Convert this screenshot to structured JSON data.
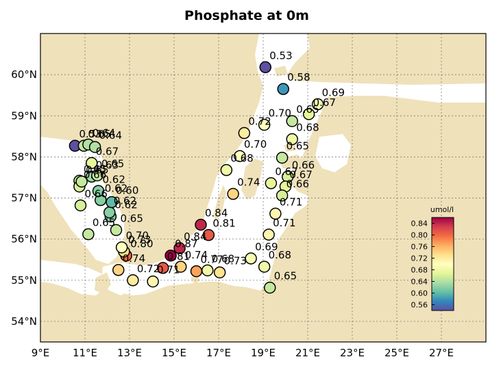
{
  "title": "Phosphate at 0m",
  "colors": {
    "land": "#efe1ba",
    "sea": "#ffffff",
    "grid": "#666666",
    "marker_edge": "#000000"
  },
  "colormap": "Spectral_r",
  "chart_data": {
    "type": "scatter",
    "xlim": [
      9,
      29
    ],
    "ylim": [
      53.5,
      61
    ],
    "xticks": [
      "9°E",
      "11°E",
      "13°E",
      "15°E",
      "17°E",
      "19°E",
      "21°E",
      "23°E",
      "25°E",
      "27°E"
    ],
    "xtick_values": [
      9,
      11,
      13,
      15,
      17,
      19,
      21,
      23,
      25,
      27
    ],
    "yticks": [
      "54°N",
      "55°N",
      "56°N",
      "57°N",
      "58°N",
      "59°N",
      "60°N"
    ],
    "ytick_values": [
      54,
      55,
      56,
      57,
      58,
      59,
      60
    ],
    "grid": true,
    "colorbar": {
      "label": "umol/l",
      "min": 0.54,
      "max": 0.86,
      "ticks": [
        "0.84",
        "0.80",
        "0.76",
        "0.72",
        "0.68",
        "0.64",
        "0.60",
        "0.56"
      ],
      "tick_values": [
        0.84,
        0.8,
        0.76,
        0.72,
        0.68,
        0.64,
        0.6,
        0.56
      ]
    },
    "points": [
      {
        "lon": 19.1,
        "lat": 60.18,
        "value": 0.53,
        "label": "0.53"
      },
      {
        "lon": 19.9,
        "lat": 59.65,
        "value": 0.58,
        "label": "0.58"
      },
      {
        "lon": 21.45,
        "lat": 59.28,
        "value": 0.69,
        "label": "0.69"
      },
      {
        "lon": 21.05,
        "lat": 59.04,
        "value": 0.67,
        "label": "0.67"
      },
      {
        "lon": 20.3,
        "lat": 58.87,
        "value": 0.65,
        "label": "0.65"
      },
      {
        "lon": 19.05,
        "lat": 58.78,
        "value": 0.7,
        "label": "0.70"
      },
      {
        "lon": 18.15,
        "lat": 58.58,
        "value": 0.72,
        "label": "0.72"
      },
      {
        "lon": 20.3,
        "lat": 58.43,
        "value": 0.68,
        "label": "0.68"
      },
      {
        "lon": 17.95,
        "lat": 58.02,
        "value": 0.7,
        "label": "0.70"
      },
      {
        "lon": 19.85,
        "lat": 57.98,
        "value": 0.65,
        "label": "0.65"
      },
      {
        "lon": 17.35,
        "lat": 57.68,
        "value": 0.68,
        "label": "0.68"
      },
      {
        "lon": 20.1,
        "lat": 57.52,
        "value": 0.66,
        "label": "0.66"
      },
      {
        "lon": 19.35,
        "lat": 57.36,
        "value": 0.67,
        "label": "0.67"
      },
      {
        "lon": 20.0,
        "lat": 57.28,
        "value": 0.67,
        "label": "0.67"
      },
      {
        "lon": 19.85,
        "lat": 57.06,
        "value": 0.66,
        "label": "0.66"
      },
      {
        "lon": 17.65,
        "lat": 57.1,
        "value": 0.74,
        "label": "0.74"
      },
      {
        "lon": 19.55,
        "lat": 56.62,
        "value": 0.71,
        "label": "0.71"
      },
      {
        "lon": 19.25,
        "lat": 56.11,
        "value": 0.71,
        "label": "0.71"
      },
      {
        "lon": 16.2,
        "lat": 56.35,
        "value": 0.84,
        "label": "0.84"
      },
      {
        "lon": 16.55,
        "lat": 56.1,
        "value": 0.81,
        "label": "0.81"
      },
      {
        "lon": 15.25,
        "lat": 55.78,
        "value": 0.84,
        "label": "0.84"
      },
      {
        "lon": 14.85,
        "lat": 55.6,
        "value": 0.87,
        "label": "0.87"
      },
      {
        "lon": 14.5,
        "lat": 55.3,
        "value": 0.81,
        "label": "0.81"
      },
      {
        "lon": 15.3,
        "lat": 55.33,
        "value": 0.74,
        "label": "0.74"
      },
      {
        "lon": 16.0,
        "lat": 55.22,
        "value": 0.77,
        "label": "0.77"
      },
      {
        "lon": 16.5,
        "lat": 55.24,
        "value": 0.68,
        "label": "0.68"
      },
      {
        "lon": 17.05,
        "lat": 55.19,
        "value": 0.73,
        "label": "0.73"
      },
      {
        "lon": 18.45,
        "lat": 55.53,
        "value": 0.69,
        "label": "0.69"
      },
      {
        "lon": 19.05,
        "lat": 55.33,
        "value": 0.68,
        "label": "0.68"
      },
      {
        "lon": 19.3,
        "lat": 54.82,
        "value": 0.65,
        "label": "0.65"
      },
      {
        "lon": 14.05,
        "lat": 54.97,
        "value": 0.71,
        "label": "0.71"
      },
      {
        "lon": 13.15,
        "lat": 55.0,
        "value": 0.72,
        "label": "0.72"
      },
      {
        "lon": 12.5,
        "lat": 55.25,
        "value": 0.74,
        "label": "0.74"
      },
      {
        "lon": 12.85,
        "lat": 55.6,
        "value": 0.8,
        "label": "0.80"
      },
      {
        "lon": 12.75,
        "lat": 55.7,
        "value": 0.73,
        "label": "0.73"
      },
      {
        "lon": 12.65,
        "lat": 55.8,
        "value": 0.7,
        "label": "0.70"
      },
      {
        "lon": 12.4,
        "lat": 56.22,
        "value": 0.65,
        "label": "0.65"
      },
      {
        "lon": 11.15,
        "lat": 56.12,
        "value": 0.65,
        "label": "0.65"
      },
      {
        "lon": 12.15,
        "lat": 56.55,
        "value": 0.62,
        "label": "0.62"
      },
      {
        "lon": 12.1,
        "lat": 56.65,
        "value": 0.62,
        "label": "0.62"
      },
      {
        "lon": 12.2,
        "lat": 56.9,
        "value": 0.6,
        "label": "0.60"
      },
      {
        "lon": 11.7,
        "lat": 56.95,
        "value": 0.62,
        "label": "0.62"
      },
      {
        "lon": 11.6,
        "lat": 57.17,
        "value": 0.62,
        "label": "0.62"
      },
      {
        "lon": 11.3,
        "lat": 57.52,
        "value": 0.63,
        "label": "0.63"
      },
      {
        "lon": 11.55,
        "lat": 57.55,
        "value": 0.65,
        "label": "0.65"
      },
      {
        "lon": 10.75,
        "lat": 57.42,
        "value": 0.65,
        "label": "0.65"
      },
      {
        "lon": 10.75,
        "lat": 57.28,
        "value": 0.66,
        "label": "0.66"
      },
      {
        "lon": 10.85,
        "lat": 57.4,
        "value": 0.65,
        "label": "0.65"
      },
      {
        "lon": 10.8,
        "lat": 56.82,
        "value": 0.66,
        "label": "0.66"
      },
      {
        "lon": 11.3,
        "lat": 57.85,
        "value": 0.67,
        "label": "0.67"
      },
      {
        "lon": 10.55,
        "lat": 58.27,
        "value": 0.53,
        "label": "0.53"
      },
      {
        "lon": 10.95,
        "lat": 58.27,
        "value": 0.65,
        "label": "0.65"
      },
      {
        "lon": 11.15,
        "lat": 58.3,
        "value": 0.64,
        "label": "0.64"
      },
      {
        "lon": 11.45,
        "lat": 58.24,
        "value": 0.64,
        "label": "0.64"
      }
    ]
  }
}
